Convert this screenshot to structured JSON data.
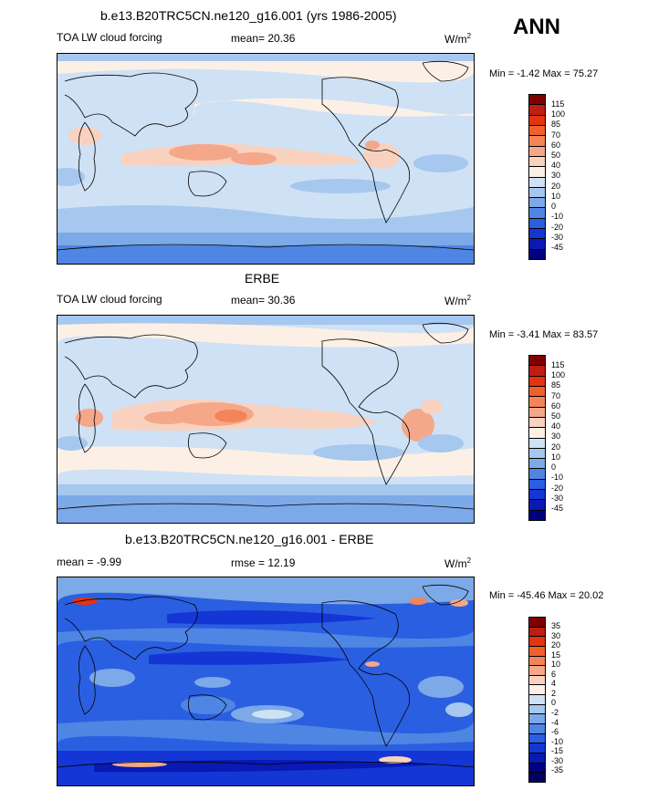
{
  "season": "ANN",
  "palette_abs": [
    "#7f0000",
    "#bf1e13",
    "#e5330f",
    "#f0602b",
    "#f3845a",
    "#f4a889",
    "#f9d2bf",
    "#fcf0e6",
    "#cfe1f4",
    "#a6c7ee",
    "#7ca9e7",
    "#4f85e3",
    "#2b5fe1",
    "#1436d4",
    "#081ab3",
    "#000080"
  ],
  "palette_diff": [
    "#7f0000",
    "#bf1e13",
    "#e5330f",
    "#f0602b",
    "#f3845a",
    "#f4a889",
    "#f9d2bf",
    "#fcf0e6",
    "#cfe1f4",
    "#a6c7ee",
    "#7ca9e7",
    "#4f85e3",
    "#2b5fe1",
    "#1436d4",
    "#081ab3",
    "#000080"
  ],
  "panels": [
    {
      "title": "b.e13.B20TRC5CN.ne120_g16.001 (yrs 1986-2005)",
      "left_label": "TOA LW cloud forcing",
      "center_label": "mean=  20.36",
      "units": "W/m",
      "units_sup": "2",
      "minmax": "Min =  -1.42 Max =  75.27",
      "levels": [
        "115",
        "100",
        "85",
        "70",
        "60",
        "50",
        "40",
        "30",
        "20",
        "10",
        "0",
        "-10",
        "-20",
        "-30",
        "-45"
      ]
    },
    {
      "title": "ERBE",
      "left_label": "TOA LW cloud forcing",
      "center_label": "mean=  30.36",
      "units": "W/m",
      "units_sup": "2",
      "minmax": "Min =  -3.41 Max =  83.57",
      "levels": [
        "115",
        "100",
        "85",
        "70",
        "60",
        "50",
        "40",
        "30",
        "20",
        "10",
        "0",
        "-10",
        "-20",
        "-30",
        "-45"
      ]
    },
    {
      "title": "b.e13.B20TRC5CN.ne120_g16.001 - ERBE",
      "left_label": "mean =  -9.99",
      "center_label": "rmse =  12.19",
      "units": "W/m",
      "units_sup": "2",
      "minmax": "Min = -45.46 Max =  20.02",
      "levels": [
        "35",
        "30",
        "20",
        "15",
        "10",
        "6",
        "4",
        "2",
        "0",
        "-2",
        "-4",
        "-6",
        "-10",
        "-15",
        "-30",
        "-35"
      ]
    }
  ]
}
